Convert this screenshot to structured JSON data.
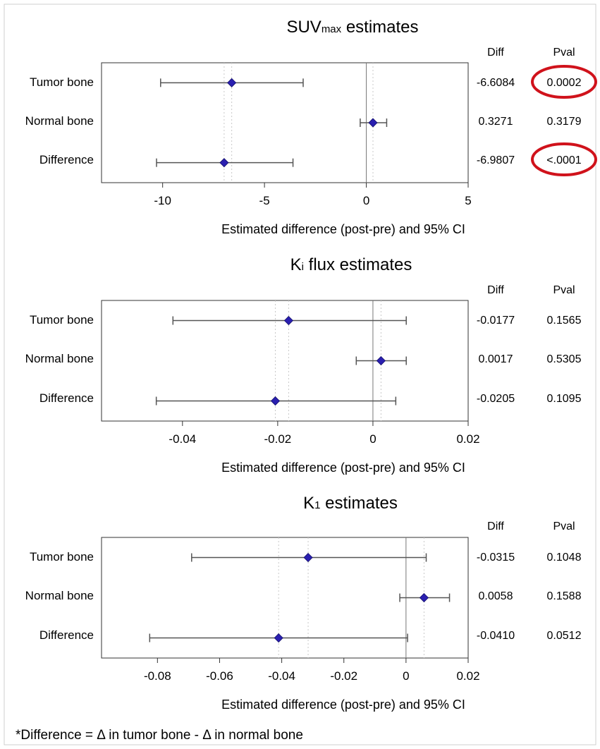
{
  "footnote": "*Difference = Δ in tumor bone - Δ in normal bone",
  "colors": {
    "marker": "#2a1fb0",
    "errorbar": "#555555",
    "highlight": "#d0121b",
    "grid": "#c8c8c8"
  },
  "chart_data": [
    {
      "type": "forest",
      "title_main": "SUV",
      "title_sub": "max",
      "title_rest": " estimates",
      "diff_header": "Diff",
      "pval_header": "Pval",
      "xlabel": "Estimated difference (post-pre) and 95% CI",
      "xlim": [
        -13,
        5
      ],
      "xticks": [
        -10,
        -5,
        0,
        5
      ],
      "xtick_labels": [
        "-10",
        "-5",
        "0",
        "5"
      ],
      "rows": [
        {
          "label": "Tumor bone",
          "estimate": -6.6084,
          "lower": -10.1,
          "upper": -3.1,
          "diff": "-6.6084",
          "pval": "0.0002",
          "highlight": true
        },
        {
          "label": "Normal bone",
          "estimate": 0.3271,
          "lower": -0.3,
          "upper": 1.0,
          "diff": "0.3271",
          "pval": "0.3179",
          "highlight": false
        },
        {
          "label": "Difference",
          "estimate": -6.9807,
          "lower": -10.3,
          "upper": -3.6,
          "diff": "-6.9807",
          "pval": "<.0001",
          "highlight": true
        }
      ]
    },
    {
      "type": "forest",
      "title_main": "K",
      "title_sub": "i",
      "title_rest": " flux estimates",
      "diff_header": "Diff",
      "pval_header": "Pval",
      "xlabel": "Estimated difference (post-pre) and 95% CI",
      "xlim": [
        -0.057,
        0.02
      ],
      "xticks": [
        -0.04,
        -0.02,
        0,
        0.02
      ],
      "xtick_labels": [
        "-0.04",
        "-0.02",
        "0",
        "0.02"
      ],
      "rows": [
        {
          "label": "Tumor bone",
          "estimate": -0.0177,
          "lower": -0.042,
          "upper": 0.007,
          "diff": "-0.0177",
          "pval": "0.1565",
          "highlight": false
        },
        {
          "label": "Normal bone",
          "estimate": 0.0017,
          "lower": -0.0035,
          "upper": 0.007,
          "diff": "0.0017",
          "pval": "0.5305",
          "highlight": false
        },
        {
          "label": "Difference",
          "estimate": -0.0205,
          "lower": -0.0455,
          "upper": 0.0048,
          "diff": "-0.0205",
          "pval": "0.1095",
          "highlight": false
        }
      ]
    },
    {
      "type": "forest",
      "title_main": "K",
      "title_sub": "1",
      "title_rest": " estimates",
      "diff_header": "Diff",
      "pval_header": "Pval",
      "xlabel": "Estimated difference (post-pre) and 95% CI",
      "xlim": [
        -0.098,
        0.02
      ],
      "xticks": [
        -0.08,
        -0.06,
        -0.04,
        -0.02,
        0,
        0.02
      ],
      "xtick_labels": [
        "-0.08",
        "-0.06",
        "-0.04",
        "-0.02",
        "0",
        "0.02"
      ],
      "rows": [
        {
          "label": "Tumor bone",
          "estimate": -0.0315,
          "lower": -0.069,
          "upper": 0.0065,
          "diff": "-0.0315",
          "pval": "0.1048",
          "highlight": false
        },
        {
          "label": "Normal bone",
          "estimate": 0.0058,
          "lower": -0.002,
          "upper": 0.014,
          "diff": "0.0058",
          "pval": "0.1588",
          "highlight": false
        },
        {
          "label": "Difference",
          "estimate": -0.041,
          "lower": -0.0825,
          "upper": 0.0005,
          "diff": "-0.0410",
          "pval": "0.0512",
          "highlight": false
        }
      ]
    }
  ]
}
